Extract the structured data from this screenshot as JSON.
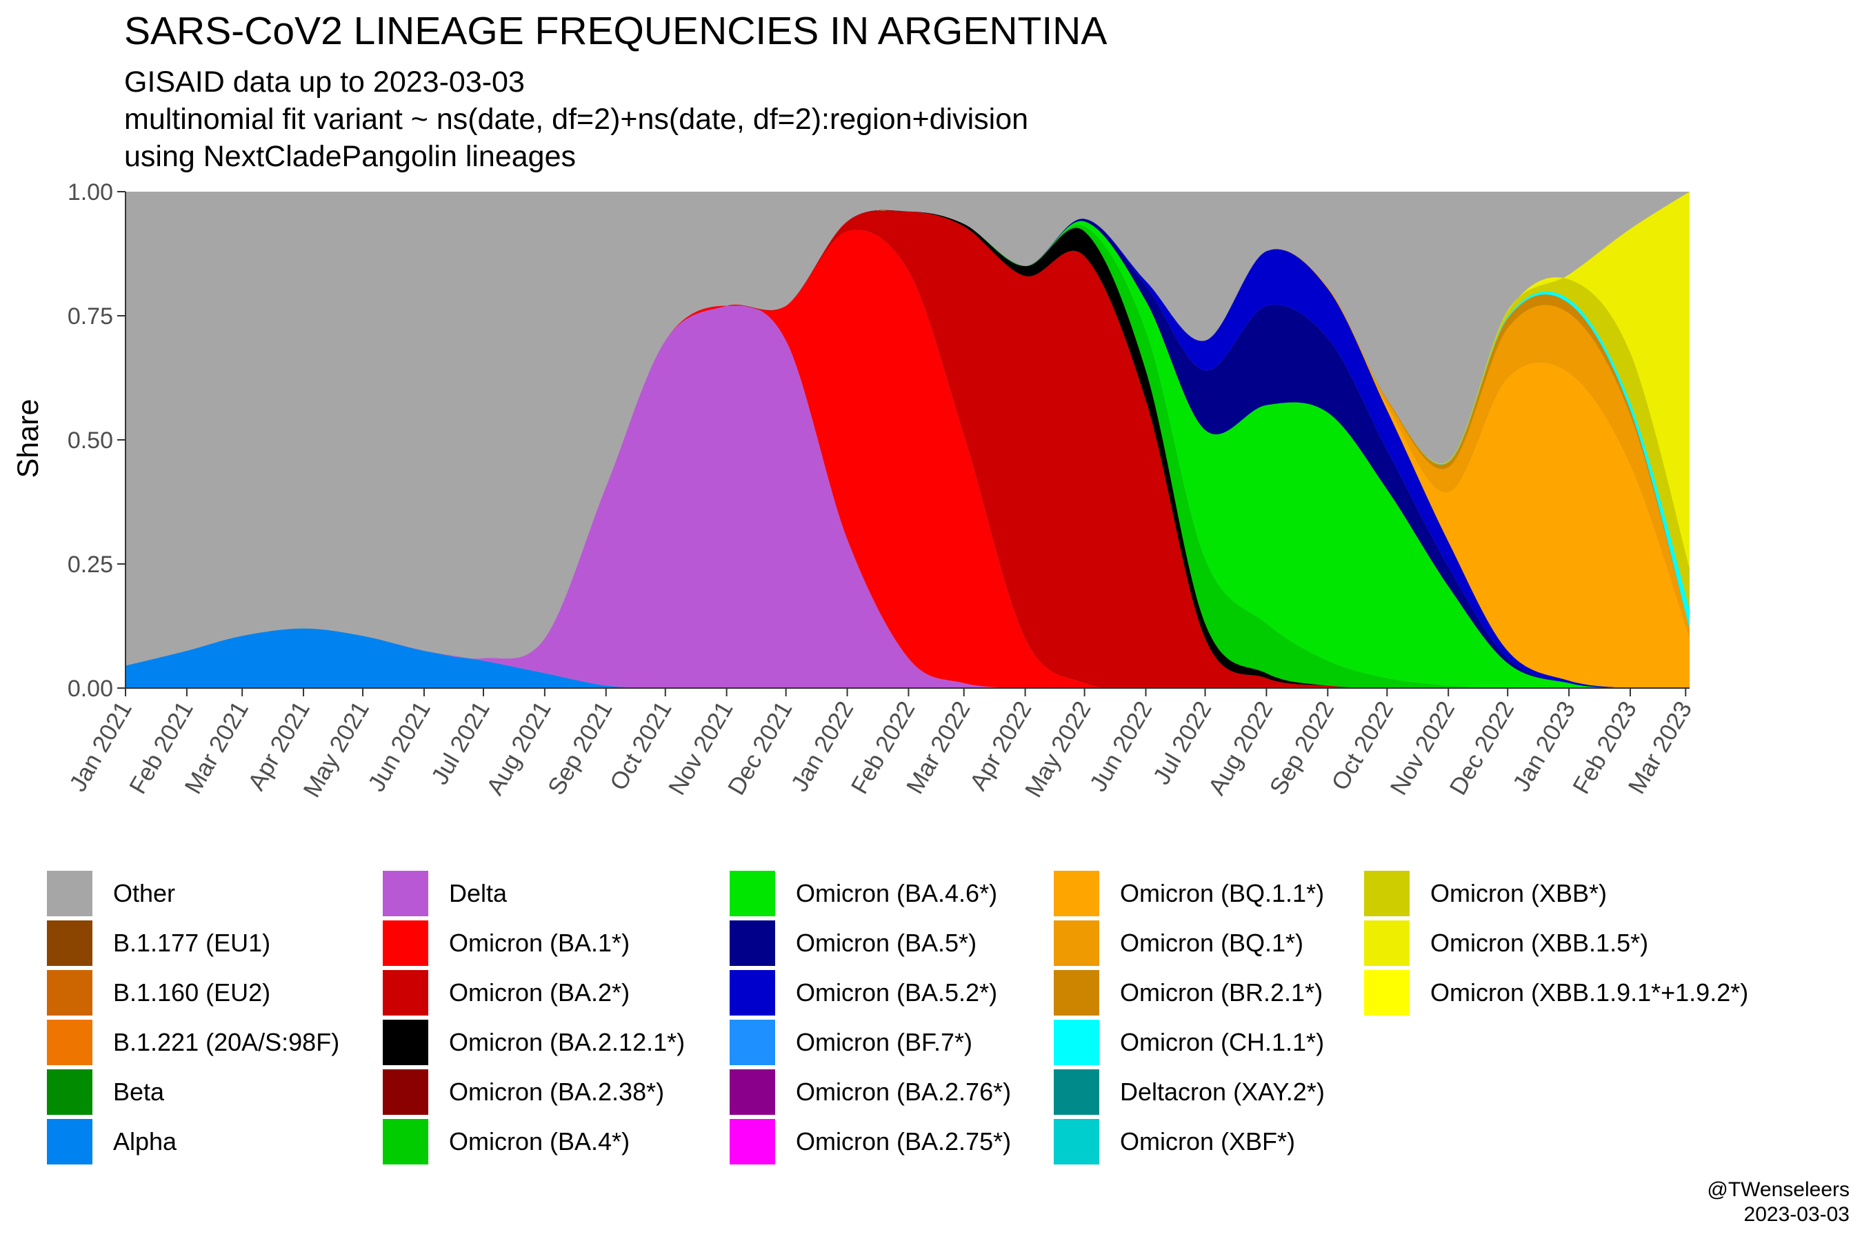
{
  "header": {
    "title": "SARS-CoV2 LINEAGE FREQUENCIES IN ARGENTINA",
    "subtitle_lines": [
      "GISAID data up to 2023-03-03",
      "multinomial fit variant ~ ns(date, df=2)+ns(date, df=2):region+division",
      "using NextCladePangolin lineages"
    ]
  },
  "credit": {
    "handle": "@TWenseleers",
    "date": "2023-03-03"
  },
  "chart_data": {
    "type": "area",
    "stacked": true,
    "normalized": true,
    "ylabel": "Share",
    "xlabel": "",
    "ylim": [
      0,
      1
    ],
    "yticks": [
      0,
      0.25,
      0.5,
      0.75,
      1
    ],
    "ytick_labels": [
      "0.00",
      "0.25",
      "0.50",
      "0.75",
      "1.00"
    ],
    "xlim": [
      "2021-01-01",
      "2023-03-03"
    ],
    "xtick_dates": [
      "2021-01-01",
      "2021-02-01",
      "2021-03-01",
      "2021-04-01",
      "2021-05-01",
      "2021-06-01",
      "2021-07-01",
      "2021-08-01",
      "2021-09-01",
      "2021-10-01",
      "2021-11-01",
      "2021-12-01",
      "2022-01-01",
      "2022-02-01",
      "2022-03-01",
      "2022-04-01",
      "2022-05-01",
      "2022-06-01",
      "2022-07-01",
      "2022-08-01",
      "2022-09-01",
      "2022-10-01",
      "2022-11-01",
      "2022-12-01",
      "2023-01-01",
      "2023-02-01",
      "2023-03-01"
    ],
    "xtick_labels": [
      "Jan 2021",
      "Feb 2021",
      "Mar 2021",
      "Apr 2021",
      "May 2021",
      "Jun 2021",
      "Jul 2021",
      "Aug 2021",
      "Sep 2021",
      "Oct 2021",
      "Nov 2021",
      "Dec 2021",
      "Jan 2022",
      "Feb 2022",
      "Mar 2022",
      "Apr 2022",
      "May 2022",
      "Jun 2022",
      "Jul 2022",
      "Aug 2022",
      "Sep 2022",
      "Oct 2022",
      "Nov 2022",
      "Dec 2022",
      "Jan 2023",
      "Feb 2023",
      "Mar 2023"
    ],
    "grid": false,
    "legend_position": "bottom",
    "x": [
      "2021-01-01",
      "2021-02-01",
      "2021-03-01",
      "2021-04-01",
      "2021-05-01",
      "2021-06-01",
      "2021-07-01",
      "2021-08-01",
      "2021-09-01",
      "2021-10-01",
      "2021-11-01",
      "2021-12-01",
      "2022-01-01",
      "2022-02-01",
      "2022-03-01",
      "2022-04-01",
      "2022-05-01",
      "2022-06-01",
      "2022-07-01",
      "2022-08-01",
      "2022-09-01",
      "2022-10-01",
      "2022-11-01",
      "2022-12-01",
      "2023-01-01",
      "2023-02-01",
      "2023-03-03"
    ],
    "series": [
      {
        "name": "Alpha",
        "color": "#0083F0",
        "values": [
          0.045,
          0.075,
          0.105,
          0.12,
          0.105,
          0.075,
          0.055,
          0.03,
          0.005,
          0,
          0,
          0,
          0,
          0,
          0,
          0,
          0,
          0,
          0,
          0,
          0,
          0,
          0,
          0,
          0,
          0,
          0
        ]
      },
      {
        "name": "Delta",
        "color": "#B958D5",
        "values": [
          0,
          0,
          0,
          0,
          0,
          0,
          0.005,
          0.07,
          0.4,
          0.7,
          0.77,
          0.7,
          0.3,
          0.06,
          0.01,
          0,
          0,
          0,
          0,
          0,
          0,
          0,
          0,
          0,
          0,
          0,
          0
        ]
      },
      {
        "name": "Omicron (BA.1*)",
        "color": "#FF0000",
        "values": [
          0,
          0,
          0,
          0,
          0,
          0,
          0,
          0,
          0,
          0,
          0,
          0.07,
          0.62,
          0.78,
          0.5,
          0.1,
          0.01,
          0,
          0,
          0,
          0,
          0,
          0,
          0,
          0,
          0,
          0
        ]
      },
      {
        "name": "Omicron (BA.2*)",
        "color": "#CC0000",
        "values": [
          0,
          0,
          0,
          0,
          0,
          0,
          0,
          0,
          0,
          0,
          0,
          0,
          0.02,
          0.12,
          0.42,
          0.73,
          0.86,
          0.58,
          0.1,
          0.02,
          0.005,
          0,
          0,
          0,
          0,
          0,
          0
        ]
      },
      {
        "name": "Omicron (BA.2.12.1*)",
        "color": "#000000",
        "values": [
          0,
          0,
          0,
          0,
          0,
          0,
          0,
          0,
          0,
          0,
          0,
          0,
          0,
          0,
          0.005,
          0.02,
          0.05,
          0.06,
          0.03,
          0.01,
          0,
          0,
          0,
          0,
          0,
          0,
          0
        ]
      },
      {
        "name": "Omicron (BA.4*)",
        "color": "#00CC00",
        "values": [
          0,
          0,
          0,
          0,
          0,
          0,
          0,
          0,
          0,
          0,
          0,
          0,
          0,
          0,
          0,
          0,
          0.01,
          0.08,
          0.13,
          0.1,
          0.05,
          0.02,
          0.005,
          0,
          0,
          0,
          0
        ]
      },
      {
        "name": "Omicron (BA.4.6*)",
        "color": "#00E600",
        "values": [
          0,
          0,
          0,
          0,
          0,
          0,
          0,
          0,
          0,
          0,
          0,
          0,
          0,
          0,
          0,
          0,
          0.01,
          0.06,
          0.26,
          0.44,
          0.5,
          0.38,
          0.2,
          0.05,
          0.01,
          0,
          0
        ]
      },
      {
        "name": "Omicron (BA.5*)",
        "color": "#00008B",
        "values": [
          0,
          0,
          0,
          0,
          0,
          0,
          0,
          0,
          0,
          0,
          0,
          0,
          0,
          0,
          0,
          0,
          0.005,
          0.03,
          0.12,
          0.2,
          0.15,
          0.08,
          0.04,
          0.01,
          0,
          0,
          0
        ]
      },
      {
        "name": "Omicron (BA.5.2*)",
        "color": "#0000CD",
        "values": [
          0,
          0,
          0,
          0,
          0,
          0,
          0,
          0,
          0,
          0,
          0,
          0,
          0,
          0,
          0,
          0,
          0,
          0.01,
          0.06,
          0.11,
          0.1,
          0.08,
          0.05,
          0.015,
          0.005,
          0,
          0
        ]
      },
      {
        "name": "Omicron (BQ.1.1*)",
        "color": "#FFA500",
        "values": [
          0,
          0,
          0,
          0,
          0,
          0,
          0,
          0,
          0,
          0,
          0,
          0,
          0,
          0,
          0,
          0,
          0,
          0,
          0,
          0,
          0.002,
          0.01,
          0.1,
          0.55,
          0.62,
          0.45,
          0.1
        ]
      },
      {
        "name": "Omicron (BQ.1*)",
        "color": "#EE9A00",
        "values": [
          0,
          0,
          0,
          0,
          0,
          0,
          0,
          0,
          0,
          0,
          0,
          0,
          0,
          0,
          0,
          0,
          0,
          0,
          0,
          0,
          0.001,
          0.01,
          0.05,
          0.1,
          0.12,
          0.1,
          0.02
        ]
      },
      {
        "name": "Omicron (BR.2.1*)",
        "color": "#CD8500",
        "values": [
          0,
          0,
          0,
          0,
          0,
          0,
          0,
          0,
          0,
          0,
          0,
          0,
          0,
          0,
          0,
          0,
          0,
          0,
          0,
          0,
          0,
          0.002,
          0.01,
          0.02,
          0.02,
          0.01,
          0
        ]
      },
      {
        "name": "Omicron (CH.1.1*)",
        "color": "#00FFFF",
        "values": [
          0,
          0,
          0,
          0,
          0,
          0,
          0,
          0,
          0,
          0,
          0,
          0,
          0,
          0,
          0,
          0,
          0,
          0,
          0,
          0,
          0,
          0,
          0.001,
          0.003,
          0.008,
          0.015,
          0.04
        ]
      },
      {
        "name": "Omicron (XBB*)",
        "color": "#CDCD00",
        "values": [
          0,
          0,
          0,
          0,
          0,
          0,
          0,
          0,
          0,
          0,
          0,
          0,
          0,
          0,
          0,
          0,
          0,
          0,
          0,
          0,
          0,
          0,
          0.002,
          0.01,
          0.04,
          0.1,
          0.08
        ]
      },
      {
        "name": "Omicron (XBB.1.5*)",
        "color": "#EEEE00",
        "values": [
          0,
          0,
          0,
          0,
          0,
          0,
          0,
          0,
          0,
          0,
          0,
          0,
          0,
          0,
          0,
          0,
          0,
          0,
          0,
          0,
          0,
          0,
          0,
          0.002,
          0.01,
          0.25,
          0.76
        ]
      }
    ],
    "other": {
      "name": "Other",
      "color": "#A6A6A6"
    },
    "legend_entries": [
      {
        "name": "Other",
        "color": "#A6A6A6"
      },
      {
        "name": "B.1.177 (EU1)",
        "color": "#8B4500"
      },
      {
        "name": "B.1.160 (EU2)",
        "color": "#CD6600"
      },
      {
        "name": "B.1.221 (20A/S:98F)",
        "color": "#EE7600"
      },
      {
        "name": "Beta",
        "color": "#008B00"
      },
      {
        "name": "Alpha",
        "color": "#0083F0"
      },
      {
        "name": "Delta",
        "color": "#B958D5"
      },
      {
        "name": "Omicron (BA.1*)",
        "color": "#FF0000"
      },
      {
        "name": "Omicron (BA.2*)",
        "color": "#CC0000"
      },
      {
        "name": "Omicron (BA.2.12.1*)",
        "color": "#000000"
      },
      {
        "name": "Omicron (BA.2.38*)",
        "color": "#8B0000"
      },
      {
        "name": "Omicron (BA.4*)",
        "color": "#00CC00"
      },
      {
        "name": "Omicron (BA.4.6*)",
        "color": "#00E600"
      },
      {
        "name": "Omicron (BA.5*)",
        "color": "#00008B"
      },
      {
        "name": "Omicron (BA.5.2*)",
        "color": "#0000CD"
      },
      {
        "name": "Omicron (BF.7*)",
        "color": "#1E90FF"
      },
      {
        "name": "Omicron (BA.2.76*)",
        "color": "#8B008B"
      },
      {
        "name": "Omicron (BA.2.75*)",
        "color": "#FF00FF"
      },
      {
        "name": "Omicron (BQ.1.1*)",
        "color": "#FFA500"
      },
      {
        "name": "Omicron (BQ.1*)",
        "color": "#EE9A00"
      },
      {
        "name": "Omicron (BR.2.1*)",
        "color": "#CD8500"
      },
      {
        "name": "Omicron (CH.1.1*)",
        "color": "#00FFFF"
      },
      {
        "name": "Deltacron (XAY.2*)",
        "color": "#008B8B"
      },
      {
        "name": "Omicron (XBF*)",
        "color": "#00CDCD"
      },
      {
        "name": "Omicron (XBB*)",
        "color": "#CDCD00"
      },
      {
        "name": "Omicron (XBB.1.5*)",
        "color": "#EEEE00"
      },
      {
        "name": "Omicron (XBB.1.9.1*+1.9.2*)",
        "color": "#FFFF00"
      }
    ]
  }
}
